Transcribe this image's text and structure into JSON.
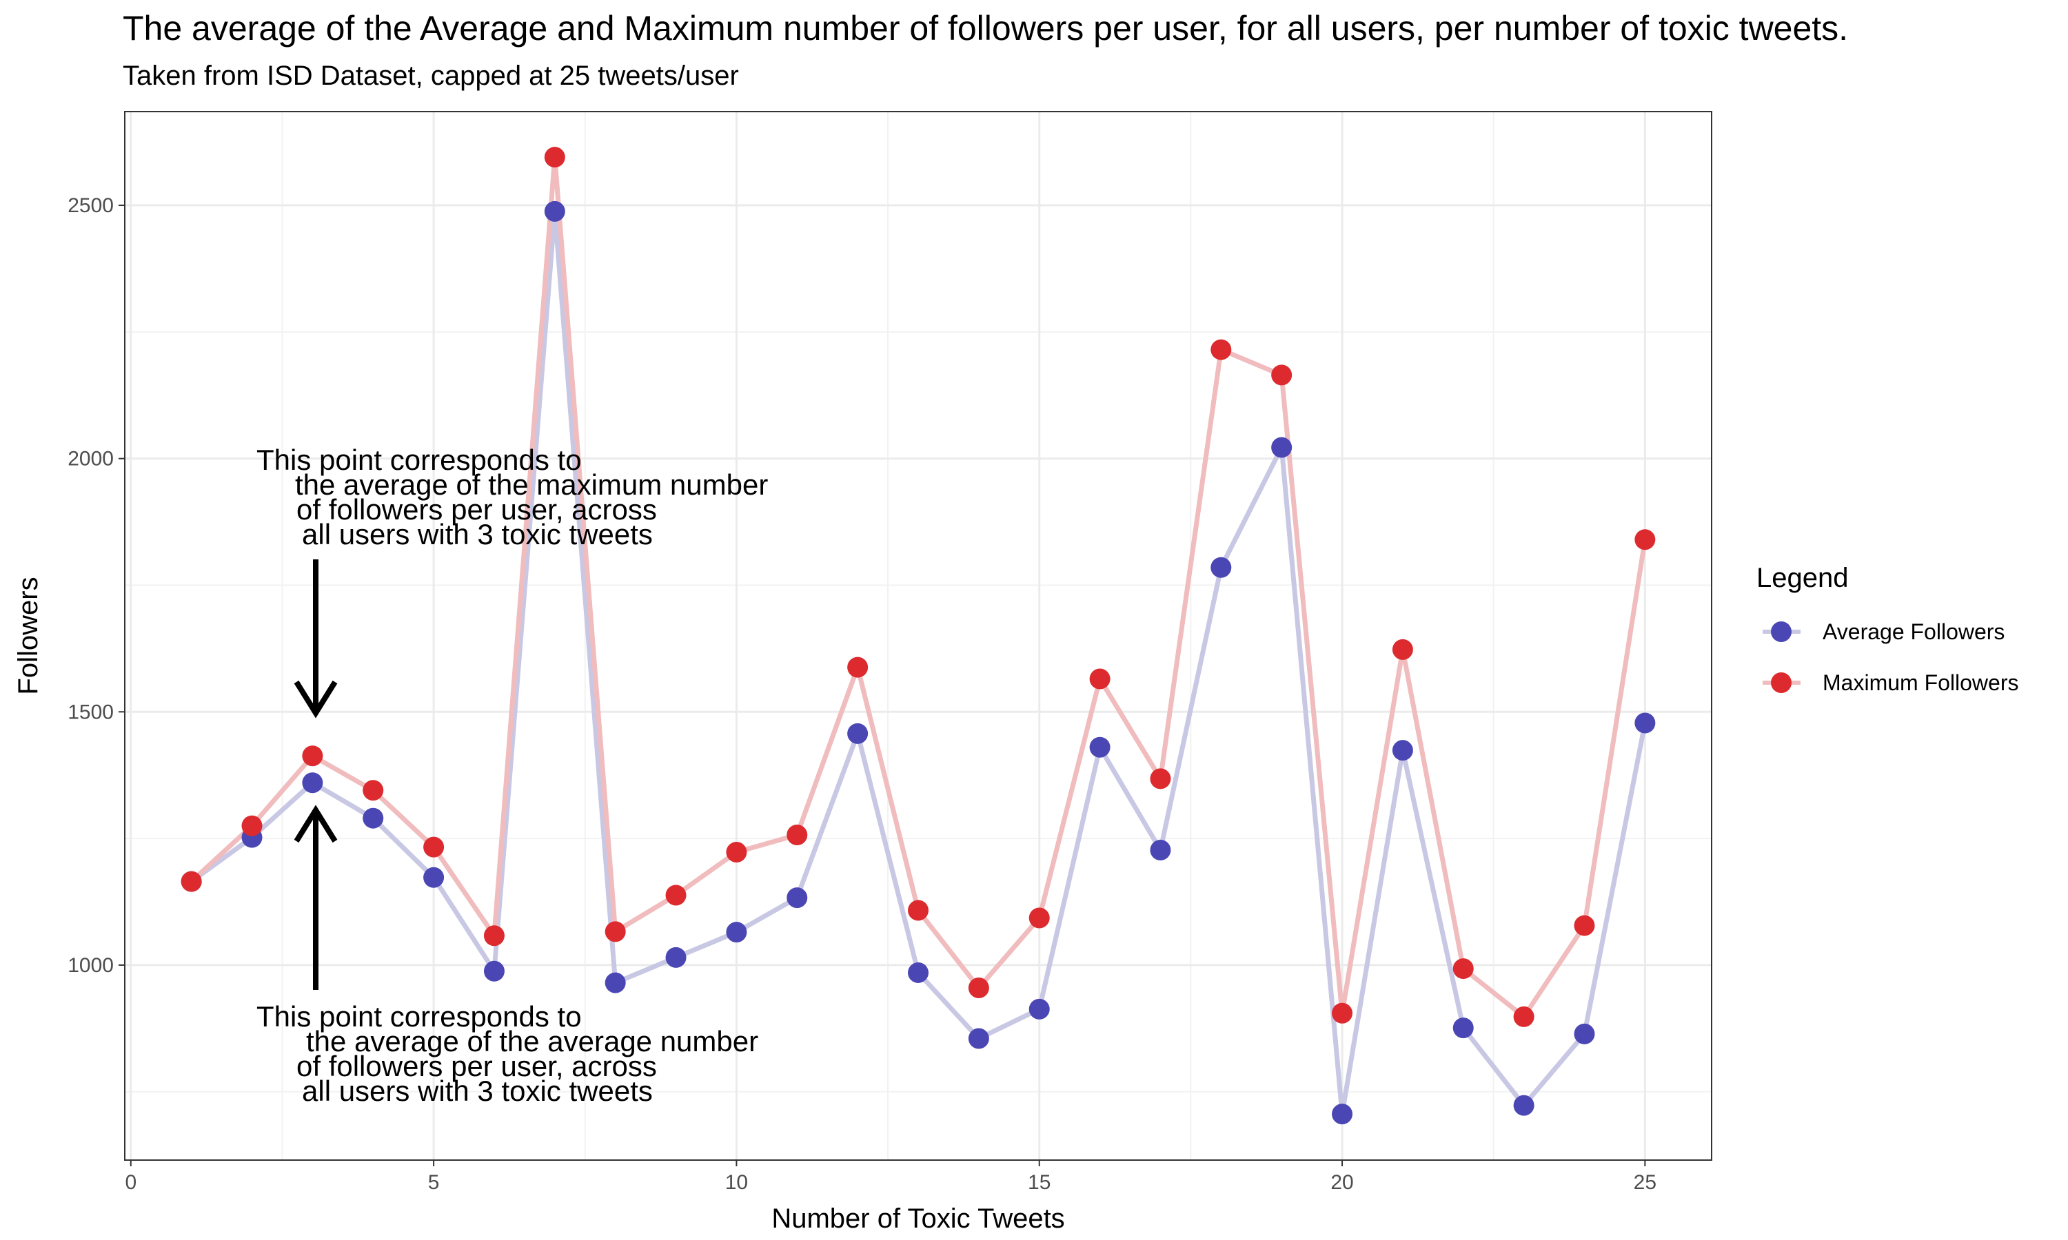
{
  "chart_data": {
    "type": "line",
    "title": "The average of the Average and Maximum number of followers per user, for all users, per number of toxic tweets.",
    "subtitle": "Taken from ISD Dataset, capped at 25 tweets/user",
    "xlabel": "Number of Toxic Tweets",
    "ylabel": "Followers",
    "xlim": [
      -0.1,
      26.1
    ],
    "ylim": [
      615,
      2685
    ],
    "x_ticks": [
      0,
      5,
      10,
      15,
      20,
      25
    ],
    "y_ticks": [
      1000,
      1500,
      2000,
      2500
    ],
    "grid": true,
    "legend": {
      "title": "Legend",
      "position": "right"
    },
    "x": [
      1,
      2,
      3,
      4,
      5,
      6,
      7,
      8,
      9,
      10,
      11,
      12,
      13,
      14,
      15,
      16,
      17,
      18,
      19,
      20,
      21,
      22,
      23,
      24,
      25
    ],
    "series": [
      {
        "name": "Average Followers",
        "point_color": "#4a46b4",
        "line_color": "#c8c8e4",
        "values": [
          1165,
          1252,
          1360,
          1290,
          1173,
          988,
          2488,
          965,
          1015,
          1065,
          1133,
          1457,
          985,
          855,
          913,
          1430,
          1227,
          1785,
          2022,
          706,
          1424,
          876,
          723,
          864,
          1478
        ]
      },
      {
        "name": "Maximum Followers",
        "point_color": "#dc2a2e",
        "line_color": "#f0bcbe",
        "values": [
          1165,
          1275,
          1413,
          1345,
          1233,
          1058,
          2595,
          1066,
          1138,
          1223,
          1257,
          1588,
          1108,
          955,
          1093,
          1565,
          1368,
          2215,
          2165,
          905,
          1623,
          993,
          898,
          1078,
          1840
        ]
      }
    ],
    "annotations": [
      {
        "lines": [
          "This point corresponds to",
          "the average of the maximum number",
          "of followers per user, across",
          "all users with 3 toxic tweets"
        ],
        "arrow_direction": "down"
      },
      {
        "lines": [
          "This point corresponds to",
          "the average of the average number",
          "of followers per user, across",
          "all users with 3 toxic tweets"
        ],
        "arrow_direction": "up"
      }
    ]
  }
}
